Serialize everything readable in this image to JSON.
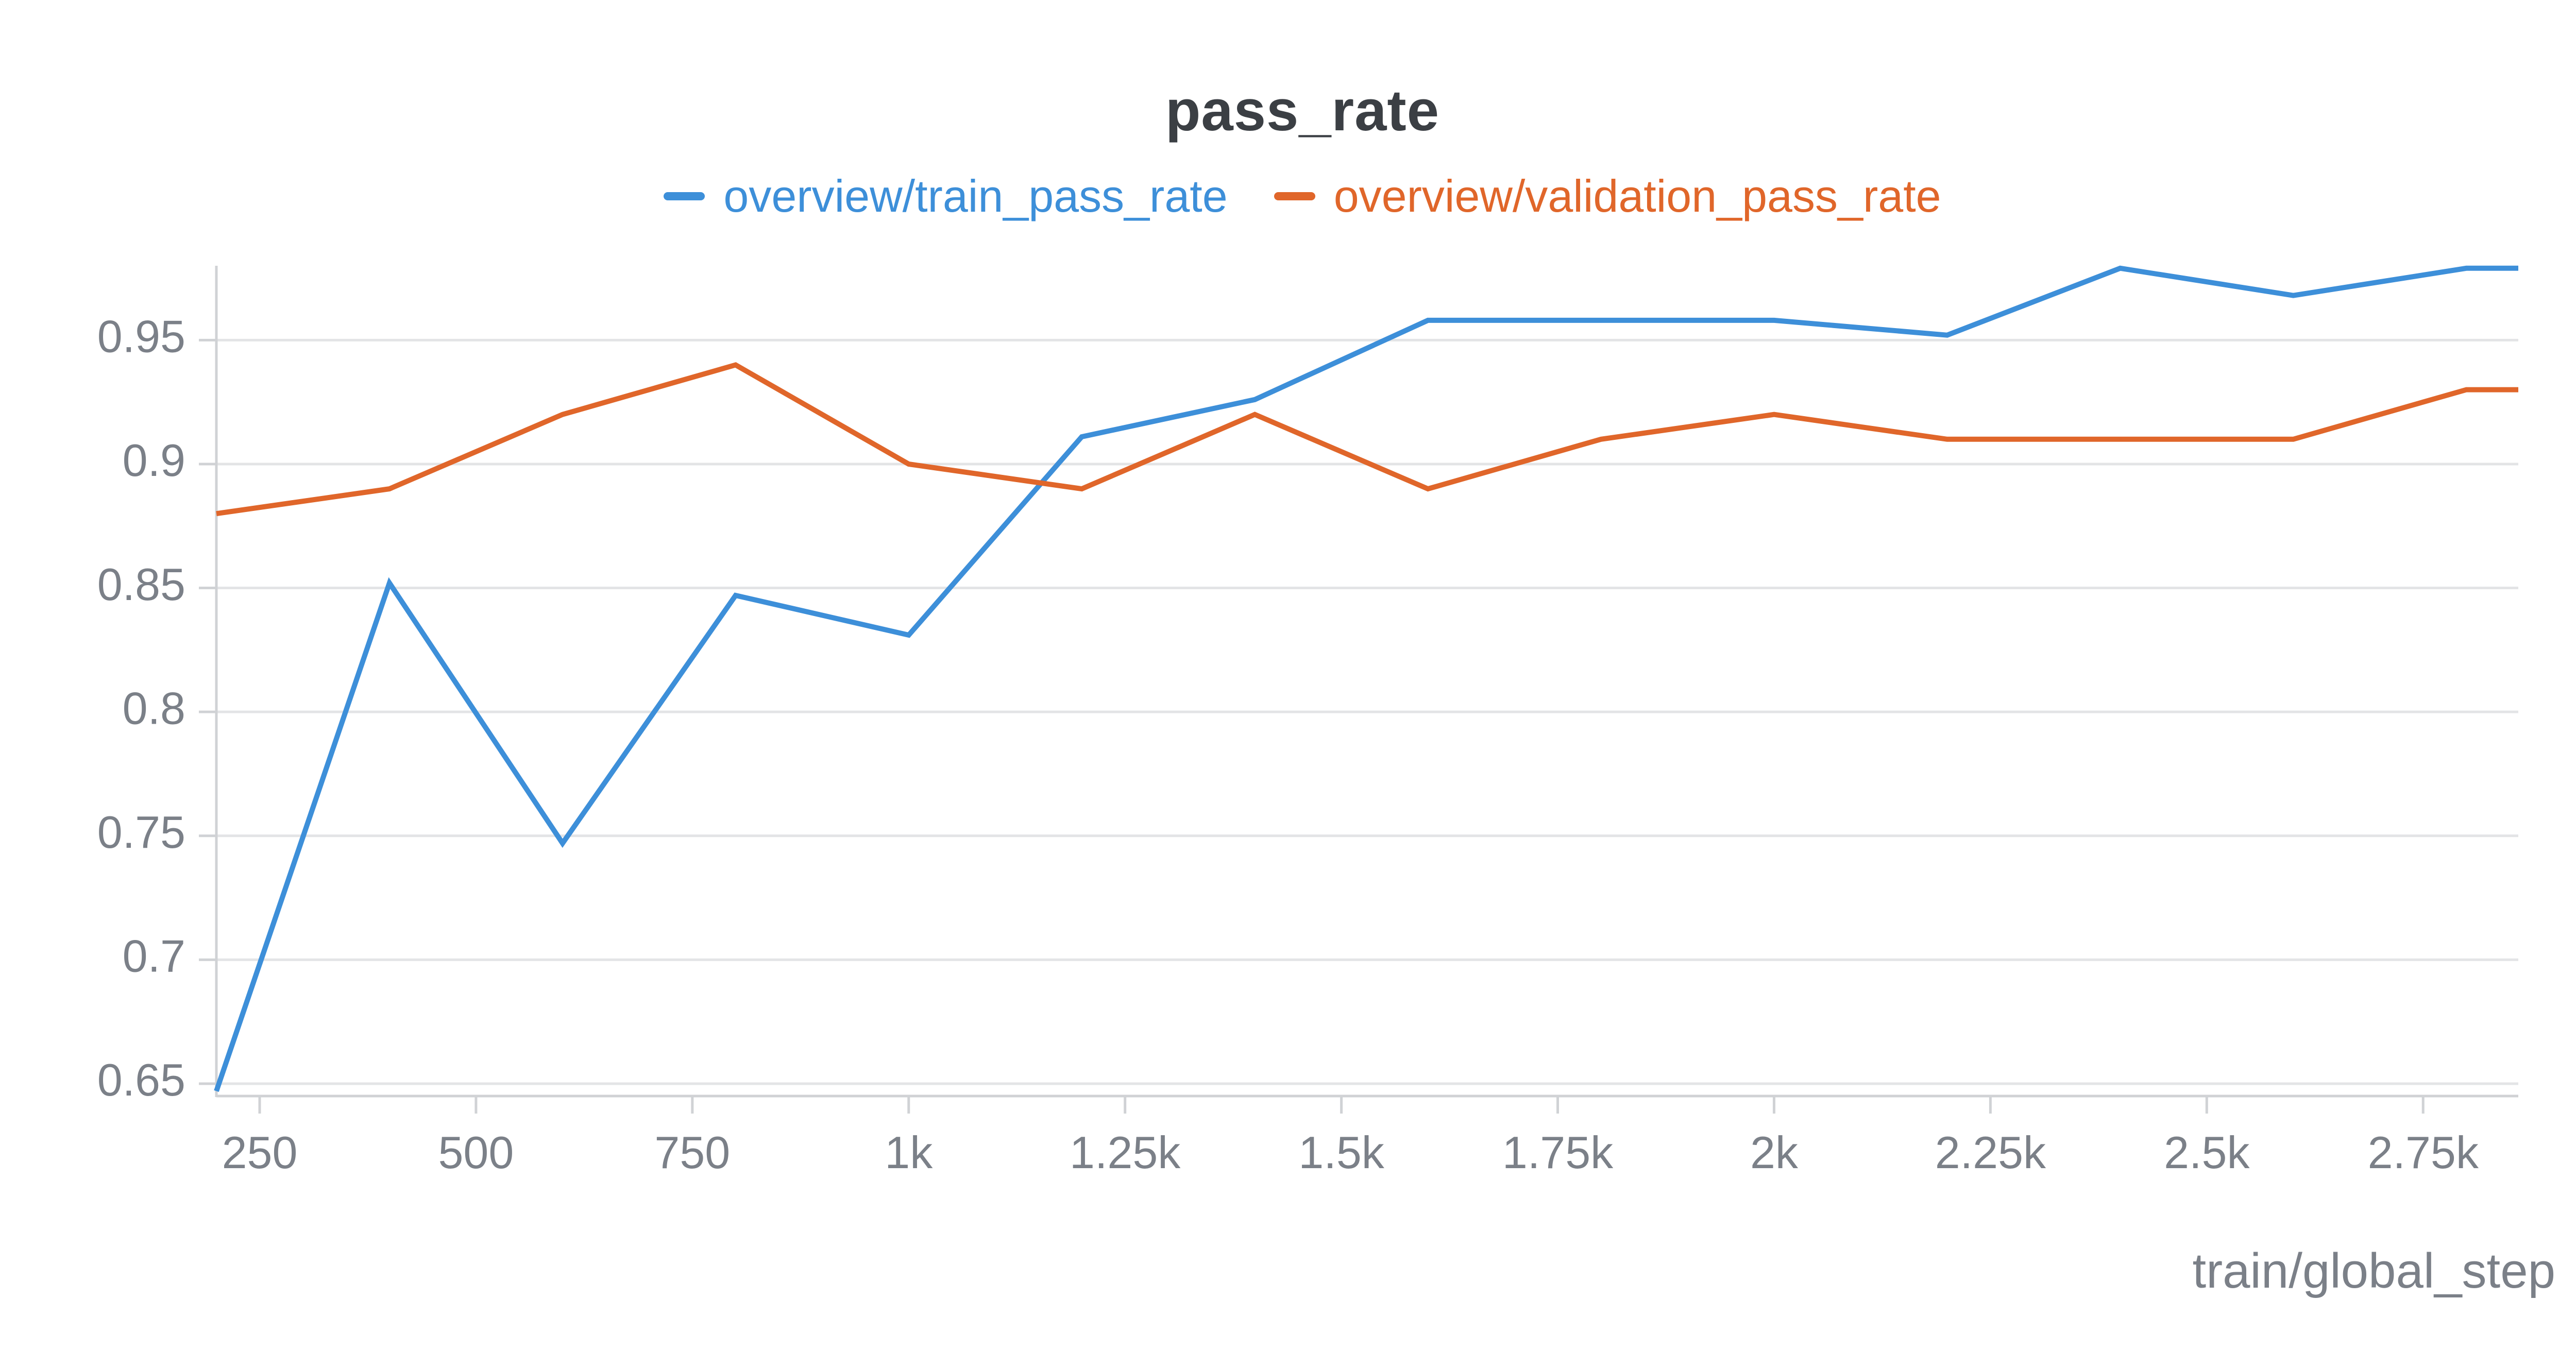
{
  "chart_data": {
    "type": "line",
    "title": "pass_rate",
    "xlabel": "train/global_step",
    "ylabel": "",
    "xlim": [
      200,
      2860
    ],
    "ylim": [
      0.645,
      0.98
    ],
    "x_ticks": [
      250,
      500,
      750,
      1000,
      1250,
      1500,
      1750,
      2000,
      2250,
      2500,
      2750
    ],
    "x_tick_labels": [
      "250",
      "500",
      "750",
      "1k",
      "1.25k",
      "1.5k",
      "1.75k",
      "2k",
      "2.25k",
      "2.5k",
      "2.75k"
    ],
    "y_ticks": [
      0.65,
      0.7,
      0.75,
      0.8,
      0.85,
      0.9,
      0.95
    ],
    "y_tick_labels": [
      "0.65",
      "0.7",
      "0.75",
      "0.8",
      "0.85",
      "0.9",
      "0.95"
    ],
    "grid": "horizontal",
    "legend_position": "top-center",
    "x": [
      200,
      400,
      600,
      800,
      1000,
      1200,
      1400,
      1600,
      1800,
      2000,
      2200,
      2400,
      2600,
      2800,
      2860
    ],
    "series": [
      {
        "name": "overview/train_pass_rate",
        "color": "#3d8fd9",
        "values": [
          0.647,
          0.852,
          0.747,
          0.847,
          0.831,
          0.911,
          0.926,
          0.958,
          0.958,
          0.958,
          0.952,
          0.979,
          0.968,
          0.979,
          0.979
        ]
      },
      {
        "name": "overview/validation_pass_rate",
        "color": "#e0662a",
        "values": [
          0.88,
          0.89,
          0.92,
          0.94,
          0.9,
          0.89,
          0.92,
          0.89,
          0.91,
          0.92,
          0.91,
          0.91,
          0.91,
          0.93,
          0.93
        ]
      }
    ]
  },
  "colors": {
    "grid": "#e3e4e6",
    "axis": "#d0d2d5",
    "tick_text": "#7b8088",
    "title_text": "#3b3f44"
  }
}
